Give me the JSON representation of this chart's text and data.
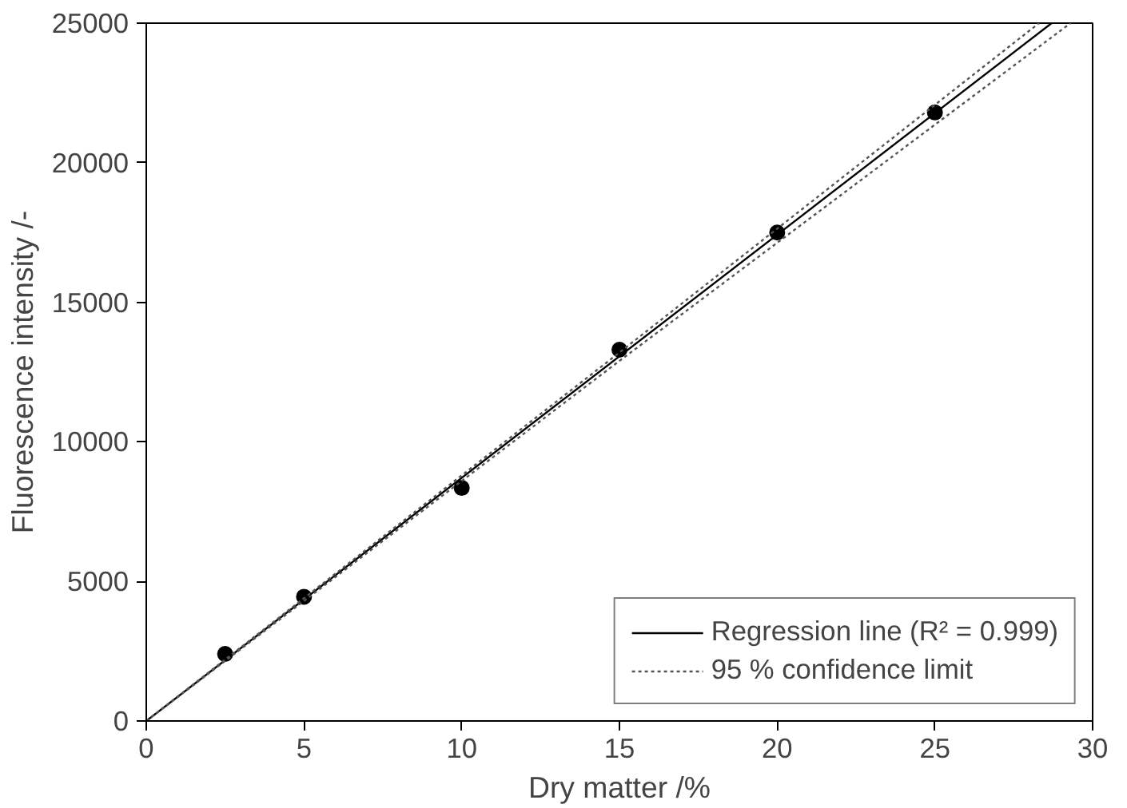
{
  "chart_data": {
    "type": "scatter",
    "xlabel": "Dry matter /%",
    "ylabel": "Fluorescence intensity /-",
    "xlim": [
      0,
      30
    ],
    "ylim": [
      0,
      25000
    ],
    "xticks": [
      0,
      5,
      10,
      15,
      20,
      25,
      30
    ],
    "yticks": [
      0,
      5000,
      10000,
      15000,
      20000,
      25000
    ],
    "grid": false,
    "legend": "bottom right",
    "marker": "circle",
    "series": [
      {
        "color": "#000000",
        "x": [
          2.5,
          5,
          10,
          15,
          20,
          25
        ],
        "values": [
          2400,
          4450,
          8350,
          13300,
          17500,
          21800
        ]
      },
      {
        "type": "line",
        "name": "Regression line (R² = 0.999)",
        "color": "#000000",
        "line_style": "solid",
        "marker": "none",
        "x": [
          0,
          28.7
        ],
        "values": [
          0,
          25000
        ]
      },
      {
        "type": "line",
        "name": "95 % confidence limit",
        "color": "#555555",
        "line_style": "dotted",
        "marker": "none",
        "x": [
          0,
          5,
          15,
          28.3
        ],
        "values": [
          0,
          4400,
          13200,
          25000
        ]
      },
      {
        "type": "line",
        "color": "#555555",
        "line_style": "dotted",
        "marker": "none",
        "x": [
          0,
          5,
          15,
          29.3
        ],
        "values": [
          0,
          4300,
          12900,
          25000
        ]
      }
    ]
  }
}
